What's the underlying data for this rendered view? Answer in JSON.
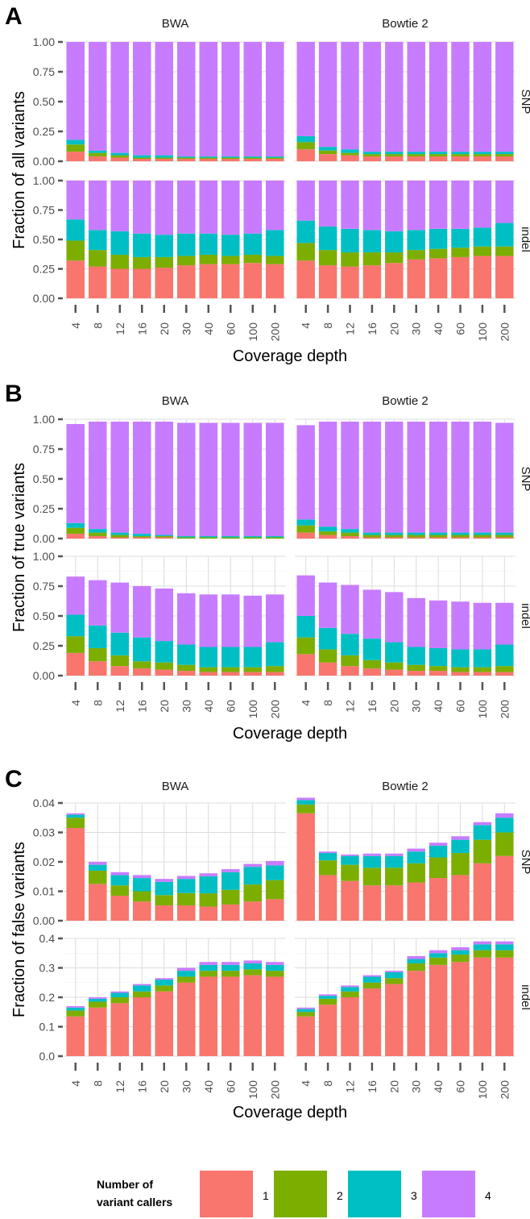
{
  "legend": {
    "title_line1": "Number of",
    "title_line2": "variant callers",
    "labels": [
      "1",
      "2",
      "3",
      "4"
    ]
  },
  "colors": {
    "1": "#F8766D",
    "2": "#7CAE00",
    "3": "#00BFC4",
    "4": "#C77CFF"
  },
  "chart_data": [
    {
      "type": "bar",
      "stacked": true,
      "panel_label": "A",
      "ylabel": "Fraction of all variants",
      "xlabel": "Coverage depth",
      "columns": [
        "BWA",
        "Bowtie 2"
      ],
      "rows": [
        "SNP",
        "indel"
      ],
      "categories": [
        "4",
        "8",
        "12",
        "16",
        "20",
        "30",
        "40",
        "60",
        "100",
        "200"
      ],
      "row_ylim": [
        [
          0,
          1
        ],
        [
          0,
          1
        ]
      ],
      "row_ticks": [
        [
          "0.00",
          "0.25",
          "0.50",
          "0.75",
          "1.00"
        ],
        [
          "0.00",
          "0.25",
          "0.50",
          "0.75",
          "1.00"
        ]
      ],
      "series_names": [
        "1",
        "2",
        "3",
        "4"
      ],
      "facets": [
        {
          "row": 0,
          "col": 0,
          "series": [
            [
              0.08,
              0.04,
              0.03,
              0.02,
              0.02,
              0.02,
              0.02,
              0.02,
              0.02,
              0.02
            ],
            [
              0.06,
              0.03,
              0.02,
              0.01,
              0.01,
              0.01,
              0.01,
              0.01,
              0.01,
              0.01
            ],
            [
              0.04,
              0.02,
              0.02,
              0.02,
              0.02,
              0.01,
              0.01,
              0.01,
              0.01,
              0.01
            ],
            [
              0.82,
              0.91,
              0.93,
              0.95,
              0.95,
              0.96,
              0.96,
              0.96,
              0.96,
              0.96
            ]
          ]
        },
        {
          "row": 0,
          "col": 1,
          "series": [
            [
              0.1,
              0.06,
              0.05,
              0.04,
              0.04,
              0.04,
              0.04,
              0.04,
              0.04,
              0.04
            ],
            [
              0.06,
              0.03,
              0.02,
              0.02,
              0.02,
              0.02,
              0.02,
              0.02,
              0.02,
              0.02
            ],
            [
              0.05,
              0.03,
              0.03,
              0.02,
              0.02,
              0.02,
              0.02,
              0.02,
              0.02,
              0.02
            ],
            [
              0.79,
              0.88,
              0.9,
              0.92,
              0.92,
              0.92,
              0.92,
              0.92,
              0.92,
              0.92
            ]
          ]
        },
        {
          "row": 1,
          "col": 0,
          "series": [
            [
              0.32,
              0.27,
              0.25,
              0.25,
              0.26,
              0.28,
              0.29,
              0.29,
              0.3,
              0.29
            ],
            [
              0.17,
              0.14,
              0.12,
              0.1,
              0.09,
              0.08,
              0.08,
              0.07,
              0.07,
              0.07
            ],
            [
              0.18,
              0.17,
              0.2,
              0.2,
              0.19,
              0.19,
              0.18,
              0.18,
              0.18,
              0.22
            ],
            [
              0.33,
              0.42,
              0.43,
              0.45,
              0.46,
              0.45,
              0.45,
              0.46,
              0.45,
              0.42
            ]
          ]
        },
        {
          "row": 1,
          "col": 1,
          "series": [
            [
              0.32,
              0.28,
              0.27,
              0.28,
              0.3,
              0.33,
              0.34,
              0.35,
              0.36,
              0.36
            ],
            [
              0.15,
              0.13,
              0.12,
              0.11,
              0.09,
              0.08,
              0.08,
              0.08,
              0.08,
              0.08
            ],
            [
              0.19,
              0.2,
              0.2,
              0.19,
              0.18,
              0.17,
              0.17,
              0.16,
              0.16,
              0.2
            ],
            [
              0.34,
              0.39,
              0.41,
              0.42,
              0.43,
              0.42,
              0.41,
              0.41,
              0.4,
              0.36
            ]
          ]
        }
      ]
    },
    {
      "type": "bar",
      "stacked": true,
      "panel_label": "B",
      "ylabel": "Fraction of true variants",
      "xlabel": "Coverage depth",
      "columns": [
        "BWA",
        "Bowtie 2"
      ],
      "rows": [
        "SNP",
        "indel"
      ],
      "categories": [
        "4",
        "8",
        "12",
        "16",
        "20",
        "30",
        "40",
        "60",
        "100",
        "200"
      ],
      "row_ylim": [
        [
          0,
          1
        ],
        [
          0,
          1
        ]
      ],
      "row_ticks": [
        [
          "0.00",
          "0.25",
          "0.50",
          "0.75",
          "1.00"
        ],
        [
          "0.00",
          "0.25",
          "0.50",
          "0.75",
          "1.00"
        ]
      ],
      "series_names": [
        "1",
        "2",
        "3",
        "4"
      ],
      "facets": [
        {
          "row": 0,
          "col": 0,
          "series": [
            [
              0.04,
              0.02,
              0.01,
              0.01,
              0.01,
              0.0,
              0.0,
              0.0,
              0.0,
              0.0
            ],
            [
              0.05,
              0.03,
              0.02,
              0.01,
              0.01,
              0.01,
              0.01,
              0.01,
              0.01,
              0.01
            ],
            [
              0.04,
              0.03,
              0.02,
              0.02,
              0.01,
              0.01,
              0.01,
              0.01,
              0.01,
              0.01
            ],
            [
              0.83,
              0.9,
              0.93,
              0.94,
              0.95,
              0.95,
              0.95,
              0.95,
              0.95,
              0.95
            ]
          ]
        },
        {
          "row": 0,
          "col": 1,
          "series": [
            [
              0.05,
              0.03,
              0.02,
              0.01,
              0.01,
              0.01,
              0.01,
              0.01,
              0.01,
              0.01
            ],
            [
              0.06,
              0.03,
              0.03,
              0.02,
              0.02,
              0.02,
              0.02,
              0.02,
              0.02,
              0.02
            ],
            [
              0.05,
              0.04,
              0.03,
              0.02,
              0.02,
              0.02,
              0.02,
              0.02,
              0.02,
              0.02
            ],
            [
              0.79,
              0.88,
              0.9,
              0.93,
              0.93,
              0.93,
              0.93,
              0.93,
              0.93,
              0.92
            ]
          ]
        },
        {
          "row": 1,
          "col": 0,
          "series": [
            [
              0.19,
              0.12,
              0.08,
              0.06,
              0.05,
              0.04,
              0.03,
              0.03,
              0.03,
              0.03
            ],
            [
              0.14,
              0.11,
              0.09,
              0.06,
              0.06,
              0.05,
              0.04,
              0.04,
              0.04,
              0.05
            ],
            [
              0.18,
              0.19,
              0.19,
              0.2,
              0.18,
              0.17,
              0.17,
              0.17,
              0.17,
              0.2
            ],
            [
              0.32,
              0.38,
              0.42,
              0.43,
              0.44,
              0.43,
              0.44,
              0.44,
              0.43,
              0.4
            ]
          ]
        },
        {
          "row": 1,
          "col": 1,
          "series": [
            [
              0.18,
              0.11,
              0.08,
              0.06,
              0.05,
              0.04,
              0.04,
              0.03,
              0.03,
              0.03
            ],
            [
              0.14,
              0.11,
              0.09,
              0.07,
              0.06,
              0.05,
              0.04,
              0.04,
              0.04,
              0.05
            ],
            [
              0.18,
              0.18,
              0.18,
              0.18,
              0.17,
              0.15,
              0.15,
              0.15,
              0.15,
              0.18
            ],
            [
              0.34,
              0.38,
              0.41,
              0.41,
              0.42,
              0.41,
              0.4,
              0.4,
              0.39,
              0.35
            ]
          ]
        }
      ]
    },
    {
      "type": "bar",
      "stacked": true,
      "panel_label": "C",
      "ylabel": "Fraction of false variants",
      "xlabel": "Coverage depth",
      "columns": [
        "BWA",
        "Bowtie 2"
      ],
      "rows": [
        "SNP",
        "indel"
      ],
      "categories": [
        "4",
        "8",
        "12",
        "16",
        "20",
        "30",
        "40",
        "60",
        "100",
        "200"
      ],
      "row_ylim": [
        [
          0,
          0.04
        ],
        [
          0,
          0.4
        ]
      ],
      "row_ticks": [
        [
          "0.00",
          "0.01",
          "0.02",
          "0.03",
          "0.04"
        ],
        [
          "0.0",
          "0.1",
          "0.2",
          "0.3",
          "0.4"
        ]
      ],
      "series_names": [
        "1",
        "2",
        "3",
        "4"
      ],
      "facets": [
        {
          "row": 0,
          "col": 0,
          "series": [
            [
              0.0315,
              0.0125,
              0.0085,
              0.0065,
              0.0052,
              0.0052,
              0.0048,
              0.0055,
              0.0065,
              0.0073
            ],
            [
              0.0035,
              0.0045,
              0.0035,
              0.0035,
              0.0035,
              0.0042,
              0.0045,
              0.005,
              0.0058,
              0.0065
            ],
            [
              0.001,
              0.002,
              0.0035,
              0.0045,
              0.0045,
              0.0048,
              0.0058,
              0.006,
              0.006,
              0.005
            ],
            [
              0.0005,
              0.001,
              0.001,
              0.001,
              0.001,
              0.001,
              0.001,
              0.001,
              0.001,
              0.0015
            ]
          ]
        },
        {
          "row": 0,
          "col": 1,
          "series": [
            [
              0.0365,
              0.0155,
              0.0135,
              0.012,
              0.012,
              0.013,
              0.0145,
              0.0155,
              0.0195,
              0.022
            ],
            [
              0.003,
              0.005,
              0.0055,
              0.006,
              0.006,
              0.0065,
              0.007,
              0.0075,
              0.008,
              0.008
            ],
            [
              0.0015,
              0.0025,
              0.003,
              0.004,
              0.004,
              0.004,
              0.004,
              0.0045,
              0.005,
              0.005
            ],
            [
              0.0008,
              0.0005,
              0.0005,
              0.0008,
              0.0008,
              0.001,
              0.001,
              0.0012,
              0.001,
              0.0015
            ]
          ]
        },
        {
          "row": 1,
          "col": 0,
          "series": [
            [
              0.135,
              0.165,
              0.18,
              0.2,
              0.22,
              0.25,
              0.27,
              0.27,
              0.275,
              0.27
            ],
            [
              0.02,
              0.02,
              0.02,
              0.02,
              0.02,
              0.02,
              0.02,
              0.02,
              0.02,
              0.02
            ],
            [
              0.01,
              0.01,
              0.015,
              0.02,
              0.02,
              0.02,
              0.02,
              0.02,
              0.02,
              0.02
            ],
            [
              0.005,
              0.005,
              0.005,
              0.005,
              0.005,
              0.01,
              0.01,
              0.01,
              0.01,
              0.01
            ]
          ]
        },
        {
          "row": 1,
          "col": 1,
          "series": [
            [
              0.135,
              0.175,
              0.2,
              0.23,
              0.245,
              0.29,
              0.31,
              0.32,
              0.335,
              0.335
            ],
            [
              0.015,
              0.02,
              0.02,
              0.02,
              0.02,
              0.025,
              0.025,
              0.025,
              0.025,
              0.025
            ],
            [
              0.01,
              0.01,
              0.015,
              0.02,
              0.02,
              0.015,
              0.015,
              0.015,
              0.02,
              0.02
            ],
            [
              0.005,
              0.005,
              0.005,
              0.005,
              0.005,
              0.01,
              0.01,
              0.01,
              0.01,
              0.01
            ]
          ]
        }
      ]
    }
  ]
}
